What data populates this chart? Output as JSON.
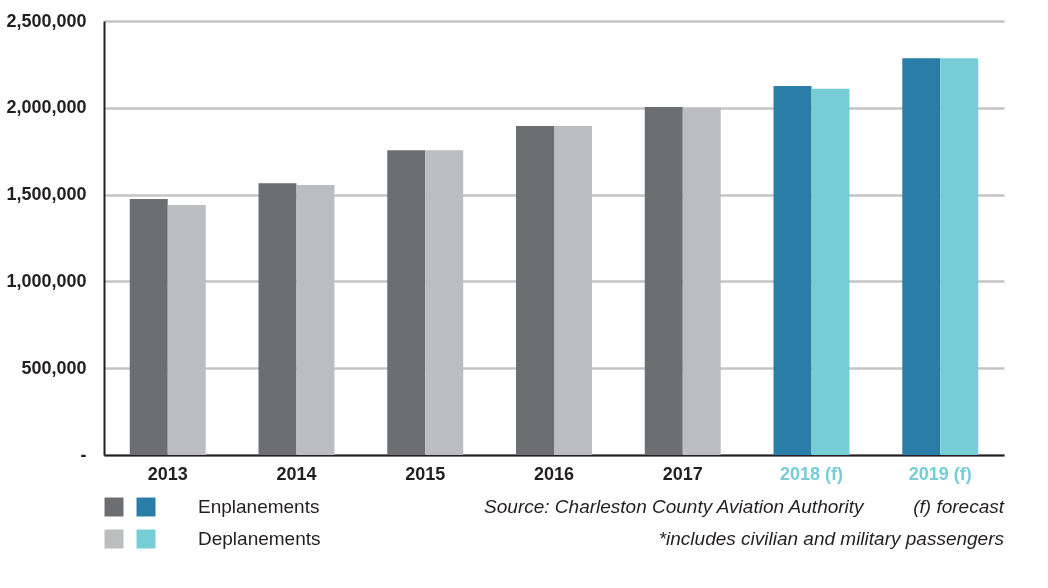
{
  "chart_data": {
    "type": "bar",
    "categories": [
      "2013",
      "2014",
      "2015",
      "2016",
      "2017",
      "2018 (f)",
      "2019 (f)"
    ],
    "series": [
      {
        "name": "Enplanements",
        "colors": [
          "#6d6e71",
          "#6d6e71",
          "#6d6e71",
          "#6d6e71",
          "#6d6e71",
          "#2a7da7",
          "#2a7da7"
        ],
        "values": [
          1475000,
          1565000,
          1755000,
          1895000,
          2005000,
          2125000,
          2285000
        ]
      },
      {
        "name": "Deplanements",
        "colors": [
          "#bcbdbf",
          "#bcbdbf",
          "#bcbdbf",
          "#bcbdbf",
          "#bcbdbf",
          "#76cdd6",
          "#76cdd6"
        ],
        "values": [
          1440000,
          1555000,
          1755000,
          1895000,
          2000000,
          2110000,
          2285000
        ]
      }
    ],
    "ylim": [
      0,
      2500000
    ],
    "yticks": [
      {
        "value": 0,
        "label": "-"
      },
      {
        "value": 500000,
        "label": "500,000"
      },
      {
        "value": 1000000,
        "label": "1,000,000"
      },
      {
        "value": 1500000,
        "label": "1,500,000"
      },
      {
        "value": 2000000,
        "label": "2,000,000"
      },
      {
        "value": 2500000,
        "label": "2,500,000"
      }
    ],
    "grid": "y",
    "legend": "bottom left",
    "annotations": [
      "Source: Charleston County Aviation Authority",
      "(f) forecast",
      "*includes civilian and military passengers"
    ]
  }
}
